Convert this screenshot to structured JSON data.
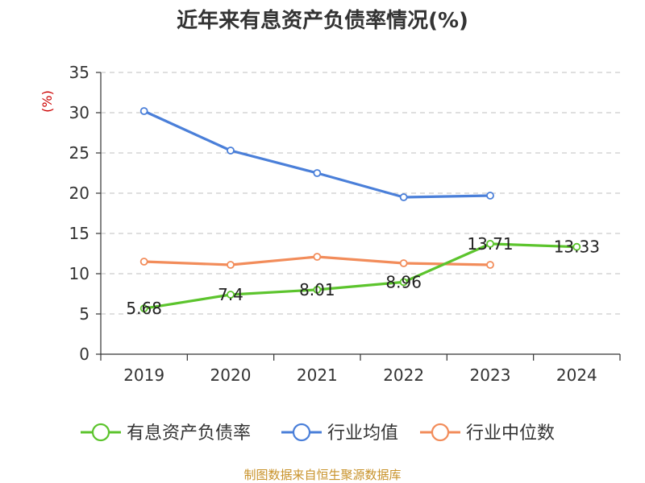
{
  "chart_data": {
    "type": "line",
    "title": "近年来有息资产负债率情况(%)",
    "ylabel": "(%)",
    "categories": [
      "2019",
      "2020",
      "2021",
      "2022",
      "2023",
      "2024"
    ],
    "yticks": [
      "0",
      "5",
      "10",
      "15",
      "20",
      "25",
      "30",
      "35"
    ],
    "ylim": [
      0,
      35
    ],
    "grid": true,
    "legend_position": "bottom",
    "series": [
      {
        "name": "有息资产负债率",
        "color": "#5cc42d",
        "values": [
          5.68,
          7.4,
          8.01,
          8.96,
          13.71,
          13.33
        ],
        "labels": [
          "5.68",
          "7.4",
          "8.01",
          "8.96",
          "13.71",
          "13.33"
        ]
      },
      {
        "name": "行业均值",
        "color": "#4a7fd9",
        "values": [
          30.2,
          25.3,
          22.5,
          19.5,
          19.7,
          null
        ]
      },
      {
        "name": "行业中位数",
        "color": "#f28c5a",
        "values": [
          11.5,
          11.1,
          12.1,
          11.3,
          11.1,
          null
        ]
      }
    ],
    "source": "制图数据来自恒生聚源数据库",
    "colors": {
      "axis": "#333333",
      "grid": "#cccccc",
      "unit": "#cc0000",
      "source": "#c8922a"
    }
  }
}
